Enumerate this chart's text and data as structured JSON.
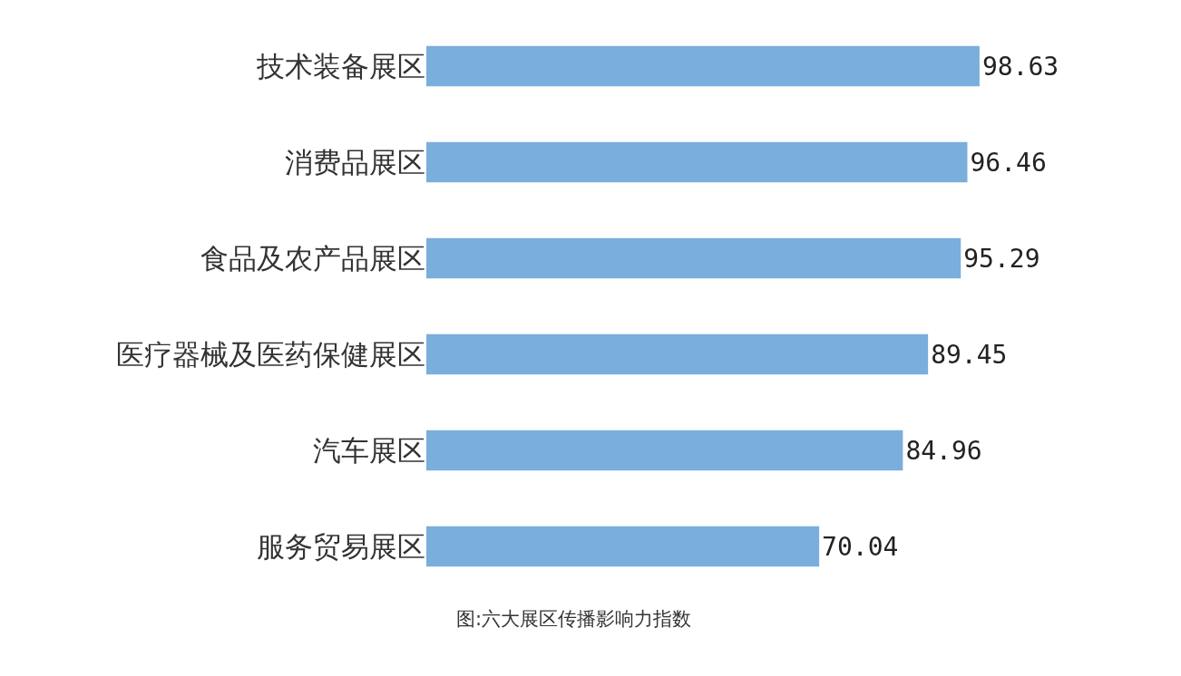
{
  "chart_data": {
    "type": "bar",
    "orientation": "horizontal",
    "categories": [
      "技术装备展区",
      "消费品展区",
      "食品及农产品展区",
      "医疗器械及医药保健展区",
      "汽车展区",
      "服务贸易展区"
    ],
    "values": [
      98.63,
      96.46,
      95.29,
      89.45,
      84.96,
      70.04
    ],
    "color": "#7aaedc",
    "data_labels": true,
    "annotations": [
      "图:六大展区传播影响力指数"
    ]
  }
}
